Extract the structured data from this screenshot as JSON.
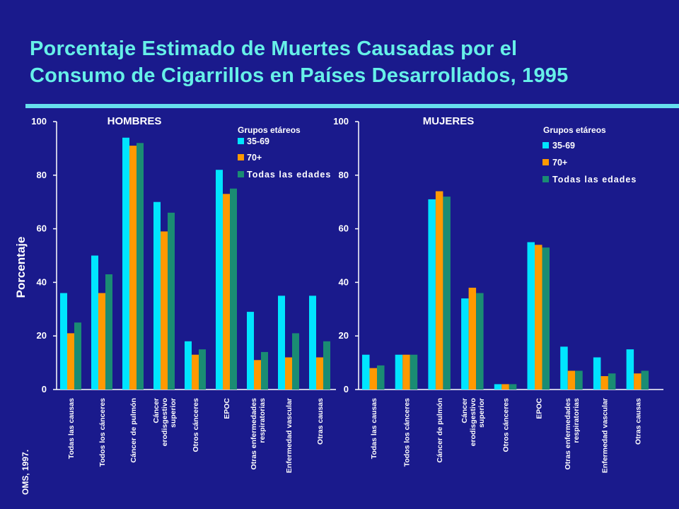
{
  "slide": {
    "title_line1": "Porcentaje Estimado de Muertes Causadas por el",
    "title_line2": "Consumo de Cigarrillos en Países Desarrollados, 1995",
    "source": "OMS, 1997."
  },
  "colors": {
    "background": "#1a1a8c",
    "series_35_69": "#00e5ff",
    "series_70": "#ff9900",
    "series_all": "#1a8c73",
    "title": "#66f0e8",
    "axis_text": "#ffffff"
  },
  "chart_data": [
    {
      "type": "bar",
      "title": "HOMBRES",
      "ylabel": "Porcentaje",
      "ylim": [
        0,
        100
      ],
      "yticks": [
        0,
        20,
        40,
        60,
        80,
        100
      ],
      "legend_title": "Grupos etáreos",
      "legend_position": "top-right",
      "categories": [
        "Todas las causas",
        "Todos los cánceres",
        "Cáncer de pulmón",
        "Cáncer erodisgestivo superior",
        "Otros cánceres",
        "EPOC",
        "Otras enfermedades respiratorias",
        "Enfermedad vascular",
        "Otras causas"
      ],
      "series": [
        {
          "name": "35-69",
          "values": [
            36,
            50,
            94,
            70,
            18,
            82,
            29,
            35,
            35
          ]
        },
        {
          "name": "70+",
          "values": [
            21,
            36,
            91,
            59,
            13,
            73,
            11,
            12,
            12
          ]
        },
        {
          "name": "Todas las edades",
          "values": [
            25,
            43,
            92,
            66,
            15,
            75,
            14,
            21,
            18
          ]
        }
      ]
    },
    {
      "type": "bar",
      "title": "MUJERES",
      "ylabel": "",
      "ylim": [
        0,
        100
      ],
      "yticks": [
        0,
        20,
        40,
        60,
        80,
        100
      ],
      "legend_title": "Grupos etáreos",
      "legend_position": "top-right",
      "categories": [
        "Todas las causas",
        "Todos los cánceres",
        "Cáncer de pulmón",
        "Cáncer erodisgestivo superior",
        "Otros cánceres",
        "EPOC",
        "Otras enfermedades respiratorias",
        "Enfermedad vascular",
        "Otras causas"
      ],
      "series": [
        {
          "name": "35-69",
          "values": [
            13,
            13,
            71,
            34,
            2,
            55,
            16,
            12,
            15
          ]
        },
        {
          "name": "70+",
          "values": [
            8,
            13,
            74,
            38,
            2,
            54,
            7,
            5,
            6
          ]
        },
        {
          "name": "Todas las edades",
          "values": [
            9,
            13,
            72,
            36,
            2,
            53,
            7,
            6,
            7
          ]
        }
      ]
    }
  ]
}
